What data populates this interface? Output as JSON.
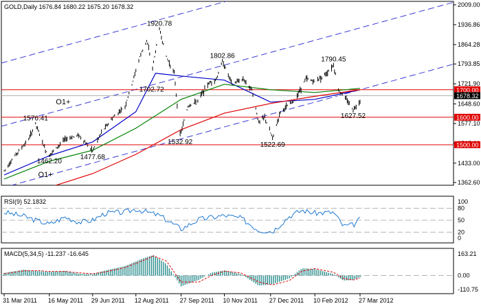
{
  "chart_data": [
    {
      "type": "line",
      "panel": "price",
      "header": "GOLD,Daily  1676.84 1680.22 1675.20 1678.32",
      "symbol": "GOLD",
      "timeframe": "Daily",
      "ohlc": {
        "open": 1676.84,
        "high": 1680.22,
        "low": 1675.2,
        "close": 1678.32
      },
      "ylim": [
        1362.6,
        2009.0
      ],
      "yticks": [
        "2009.00",
        "1936.86",
        "1864.28",
        "1793.85",
        "1721.90",
        "1648.60",
        "1577.10",
        "1505.20",
        "1433.00",
        "1362.60"
      ],
      "current_price_label": "1678.32",
      "x_dates": [
        "31 Mar 2011",
        "16 May 2011",
        "29 Jun 2011",
        "12 Aug 2011",
        "27 Sep 2011",
        "10 Nov 2011",
        "27 Dec 2011",
        "10 Feb 2012",
        "27 Mar 2012"
      ],
      "price_series": [
        [
          "31 Mar 2011",
          1405
        ],
        [
          "11 Apr 2011",
          1460
        ],
        [
          "25 Apr 2011",
          1520
        ],
        [
          "2 May 2011",
          1576.41
        ],
        [
          "12 May 2011",
          1480
        ],
        [
          "16 May 2011",
          1462.2
        ],
        [
          "1 Jun 2011",
          1520
        ],
        [
          "15 Jun 2011",
          1535
        ],
        [
          "29 Jun 2011",
          1477.68
        ],
        [
          "8 Jul 2011",
          1545
        ],
        [
          "20 Jul 2011",
          1600
        ],
        [
          "1 Aug 2011",
          1640
        ],
        [
          "8 Aug 2011",
          1720
        ],
        [
          "16 Aug 2011",
          1820
        ],
        [
          "23 Aug 2011",
          1880
        ],
        [
          "29 Aug 2011",
          1780
        ],
        [
          "5 Sep 2011",
          1920.78
        ],
        [
          "12 Sep 2011",
          1820
        ],
        [
          "20 Sep 2011",
          1760
        ],
        [
          "26 Sep 2011",
          1532.92
        ],
        [
          "4 Oct 2011",
          1640
        ],
        [
          "14 Oct 2011",
          1660
        ],
        [
          "24 Oct 2011",
          1720
        ],
        [
          "2 Nov 2011",
          1740
        ],
        [
          "8 Nov 2011",
          1802.86
        ],
        [
          "18 Nov 2011",
          1720
        ],
        [
          "29 Nov 2011",
          1740
        ],
        [
          "8 Dec 2011",
          1700
        ],
        [
          "15 Dec 2011",
          1580
        ],
        [
          "21 Dec 2011",
          1600
        ],
        [
          "29 Dec 2011",
          1522.69
        ],
        [
          "6 Jan 2012",
          1620
        ],
        [
          "20 Jan 2012",
          1660
        ],
        [
          "1 Feb 2012",
          1740
        ],
        [
          "10 Feb 2012",
          1730
        ],
        [
          "22 Feb 2012",
          1760
        ],
        [
          "29 Feb 2012",
          1790.45
        ],
        [
          "5 Mar 2012",
          1700
        ],
        [
          "14 Mar 2012",
          1660
        ],
        [
          "20 Mar 2012",
          1627.52
        ],
        [
          "27 Mar 2012",
          1660
        ],
        [
          "30 Mar 2012",
          1678.32
        ]
      ],
      "moving_averages": [
        {
          "color": "#0000c8",
          "values": [
            [
              "31 Mar 2011",
              1390
            ],
            [
              "16 May 2011",
              1460
            ],
            [
              "29 Jun 2011",
              1510
            ],
            [
              "12 Aug 2011",
              1620
            ],
            [
              "1 Sep 2011",
              1760
            ],
            [
              "27 Sep 2011",
              1750
            ],
            [
              "10 Nov 2011",
              1735
            ],
            [
              "27 Dec 2011",
              1655
            ],
            [
              "10 Feb 2012",
              1665
            ],
            [
              "27 Mar 2012",
              1700
            ]
          ]
        },
        {
          "color": "#008000",
          "values": [
            [
              "31 Mar 2011",
              1375
            ],
            [
              "16 May 2011",
              1440
            ],
            [
              "29 Jun 2011",
              1480
            ],
            [
              "12 Aug 2011",
              1560
            ],
            [
              "27 Sep 2011",
              1665
            ],
            [
              "10 Nov 2011",
              1720
            ],
            [
              "27 Dec 2011",
              1700
            ],
            [
              "10 Feb 2012",
              1690
            ],
            [
              "27 Mar 2012",
              1705
            ]
          ]
        },
        {
          "color": "#e00000",
          "values": [
            [
              "31 Mar 2011",
              1330
            ],
            [
              "16 May 2011",
              1345
            ],
            [
              "29 Jun 2011",
              1395
            ],
            [
              "12 Aug 2011",
              1465
            ],
            [
              "27 Sep 2011",
              1555
            ],
            [
              "10 Nov 2011",
              1615
            ],
            [
              "27 Dec 2011",
              1650
            ],
            [
              "10 Feb 2012",
              1676
            ],
            [
              "27 Mar 2012",
              1700
            ]
          ]
        }
      ],
      "channel_lines": [
        [
          [
            "31 Mar 2011",
            1800
          ],
          [
            "27 Mar 2012",
            2155
          ]
        ],
        [
          [
            "31 Mar 2011",
            1570
          ],
          [
            "27 Mar 2012",
            1925
          ]
        ],
        [
          [
            "31 Mar 2011",
            1345
          ],
          [
            "27 Mar 2012",
            1700
          ]
        ]
      ],
      "horizontal_levels": [
        {
          "value": 1700.0,
          "label": "1700.00",
          "color": "#e00000"
        },
        {
          "value": 1600.0,
          "label": "1600.00",
          "color": "#e00000"
        },
        {
          "value": 1500.0,
          "label": "1500.00",
          "color": "#e00000"
        },
        {
          "value": 1678.32,
          "label": "1678.32",
          "color": "#000000"
        }
      ],
      "annotations": [
        {
          "text": "1920.78",
          "date": "5 Sep 2011",
          "value": 1920.78
        },
        {
          "text": "1802.86",
          "date": "8 Nov 2011",
          "value": 1802.86
        },
        {
          "text": "1790.45",
          "date": "29 Feb 2012",
          "value": 1790.45
        },
        {
          "text": "1702.72",
          "date": "28 Aug 2011",
          "value": 1702.72
        },
        {
          "text": "1576.41",
          "date": "2 May 2011",
          "value": 1576.41
        },
        {
          "text": "1627.52",
          "date": "20 Mar 2012",
          "value": 1627.52
        },
        {
          "text": "1532.92",
          "date": "26 Sep 2011",
          "value": 1532.92
        },
        {
          "text": "1522.69",
          "date": "29 Dec 2011",
          "value": 1522.69
        },
        {
          "text": "1462.20",
          "date": "16 May 2011",
          "value": 1462.2
        },
        {
          "text": "1477.68",
          "date": "29 Jun 2011",
          "value": 1477.68
        },
        {
          "text": "O1+",
          "date": "30 May 2011",
          "value": 1647
        },
        {
          "text": "O1+",
          "date": "12 May 2011",
          "value": 1382
        }
      ]
    },
    {
      "type": "line",
      "panel": "rsi",
      "header": "RSI(9) 52.1832",
      "ylim": [
        0,
        100
      ],
      "yticks": [
        "100",
        "80",
        "50",
        "20",
        "0"
      ],
      "levels": [
        80,
        50,
        20
      ],
      "series": [
        {
          "values": [
            [
              "31 Mar 2011",
              70
            ],
            [
              "20 Apr 2011",
              60
            ],
            [
              "5 May 2011",
              48
            ],
            [
              "16 May 2011",
              40
            ],
            [
              "1 Jun 2011",
              58
            ],
            [
              "16 Jun 2011",
              45
            ],
            [
              "29 Jun 2011",
              50
            ],
            [
              "12 Jul 2011",
              68
            ],
            [
              "1 Aug 2011",
              70
            ],
            [
              "12 Aug 2011",
              78
            ],
            [
              "5 Sep 2011",
              62
            ],
            [
              "27 Sep 2011",
              28
            ],
            [
              "15 Oct 2011",
              52
            ],
            [
              "10 Nov 2011",
              62
            ],
            [
              "27 Nov 2011",
              55
            ],
            [
              "15 Dec 2011",
              25
            ],
            [
              "29 Dec 2011",
              22
            ],
            [
              "15 Jan 2012",
              60
            ],
            [
              "28 Jan 2012",
              75
            ],
            [
              "10 Feb 2012",
              68
            ],
            [
              "29 Feb 2012",
              70
            ],
            [
              "10 Mar 2012",
              35
            ],
            [
              "20 Mar 2012",
              38
            ],
            [
              "27 Mar 2012",
              52
            ]
          ]
        }
      ]
    },
    {
      "type": "bar",
      "panel": "macd",
      "header": "MACD(5,34,5) -11.237 -16.645",
      "ylim": [
        -110.75,
        163.21
      ],
      "yticks": [
        "163.21",
        "0.00",
        "-110.75"
      ],
      "series": [
        {
          "values": [
            [
              "31 Mar 2011",
              18
            ],
            [
              "20 Apr 2011",
              40
            ],
            [
              "5 May 2011",
              30
            ],
            [
              "16 May 2011",
              25
            ],
            [
              "1 Jun 2011",
              32
            ],
            [
              "16 Jun 2011",
              12
            ],
            [
              "29 Jun 2011",
              10
            ],
            [
              "12 Jul 2011",
              35
            ],
            [
              "1 Aug 2011",
              65
            ],
            [
              "20 Aug 2011",
              120
            ],
            [
              "30 Aug 2011",
              140
            ],
            [
              "12 Sep 2011",
              80
            ],
            [
              "27 Sep 2011",
              -75
            ],
            [
              "15 Oct 2011",
              -30
            ],
            [
              "28 Oct 2011",
              20
            ],
            [
              "10 Nov 2011",
              35
            ],
            [
              "27 Nov 2011",
              10
            ],
            [
              "15 Dec 2011",
              -70
            ],
            [
              "29 Dec 2011",
              -60
            ],
            [
              "15 Jan 2012",
              -20
            ],
            [
              "28 Jan 2012",
              50
            ],
            [
              "10 Feb 2012",
              45
            ],
            [
              "29 Feb 2012",
              10
            ],
            [
              "10 Mar 2012",
              -35
            ],
            [
              "20 Mar 2012",
              -30
            ],
            [
              "27 Mar 2012",
              -11.237
            ]
          ]
        },
        {
          "values": [
            [
              "31 Mar 2011",
              12
            ],
            [
              "20 Apr 2011",
              32
            ],
            [
              "5 May 2011",
              34
            ],
            [
              "16 May 2011",
              28
            ],
            [
              "1 Jun 2011",
              28
            ],
            [
              "16 Jun 2011",
              18
            ],
            [
              "29 Jun 2011",
              12
            ],
            [
              "12 Jul 2011",
              25
            ],
            [
              "1 Aug 2011",
              55
            ],
            [
              "20 Aug 2011",
              105
            ],
            [
              "30 Aug 2011",
              135
            ],
            [
              "12 Sep 2011",
              100
            ],
            [
              "27 Sep 2011",
              -45
            ],
            [
              "15 Oct 2011",
              -45
            ],
            [
              "28 Oct 2011",
              0
            ],
            [
              "10 Nov 2011",
              30
            ],
            [
              "27 Nov 2011",
              18
            ],
            [
              "15 Dec 2011",
              -45
            ],
            [
              "29 Dec 2011",
              -65
            ],
            [
              "15 Jan 2012",
              -35
            ],
            [
              "28 Jan 2012",
              30
            ],
            [
              "10 Feb 2012",
              48
            ],
            [
              "29 Feb 2012",
              22
            ],
            [
              "10 Mar 2012",
              -20
            ],
            [
              "20 Mar 2012",
              -32
            ],
            [
              "27 Mar 2012",
              -16.645
            ]
          ]
        }
      ]
    }
  ]
}
